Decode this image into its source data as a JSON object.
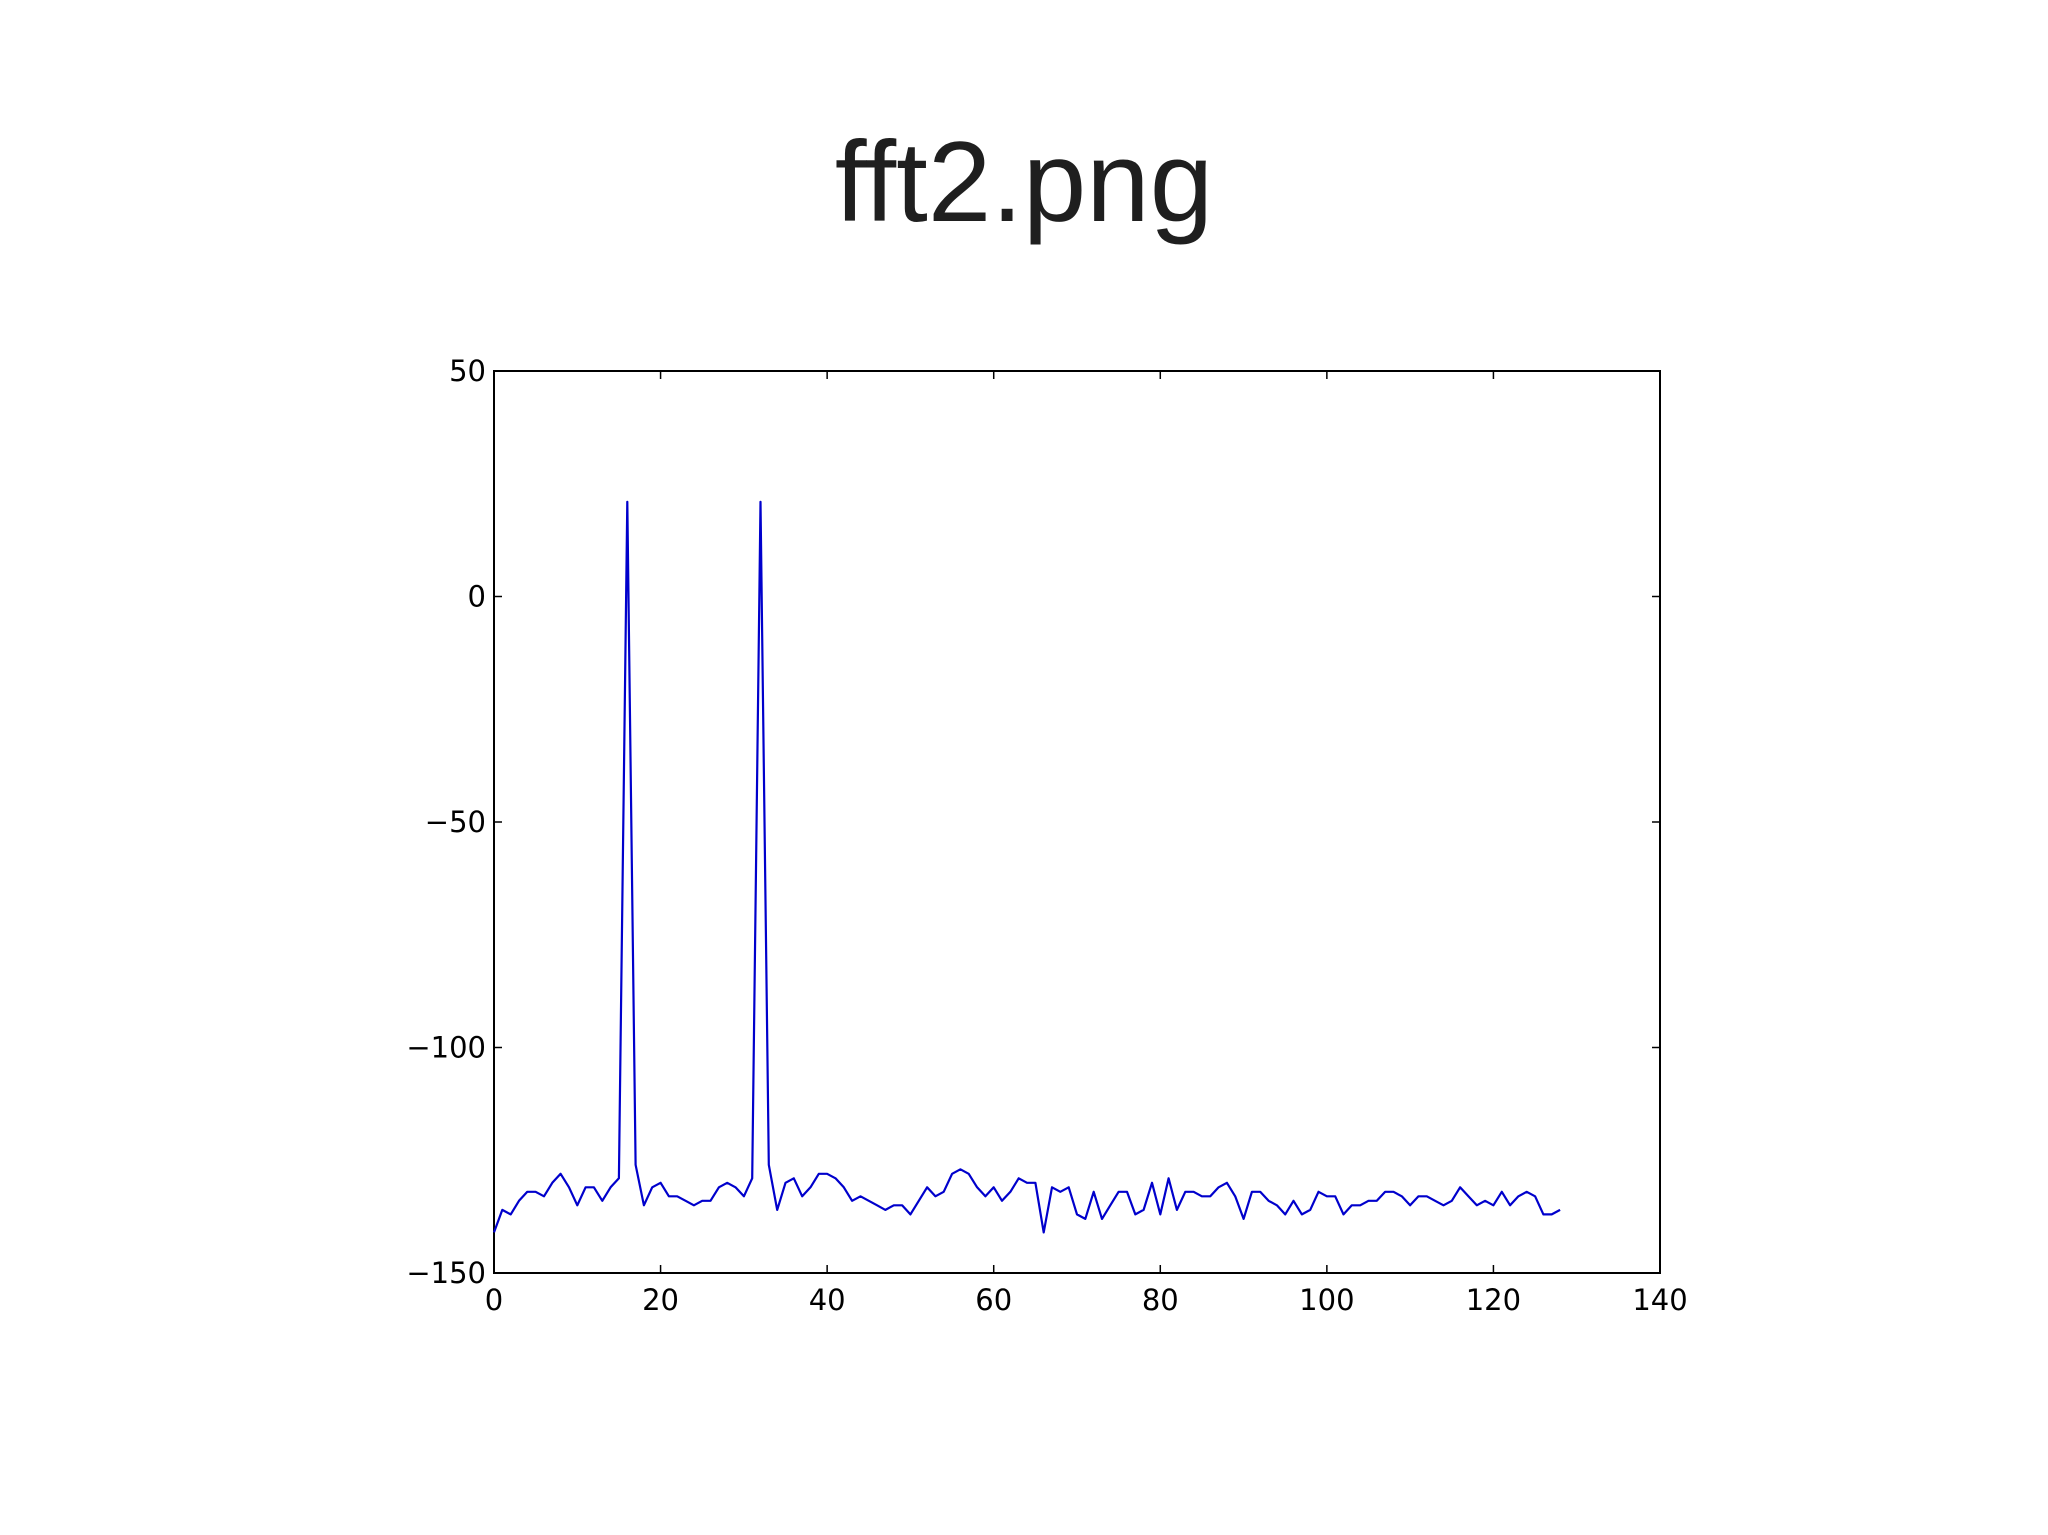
{
  "slide": {
    "title": "fft2.png"
  },
  "chart_data": {
    "type": "line",
    "title": "",
    "xlabel": "",
    "ylabel": "",
    "xlim": [
      0,
      140
    ],
    "ylim": [
      -150,
      50
    ],
    "grid": false,
    "legend": "none",
    "x_ticks": [
      0,
      20,
      40,
      60,
      80,
      100,
      120,
      140
    ],
    "y_ticks": [
      50,
      0,
      -50,
      -100,
      -150
    ],
    "x_tick_labels": [
      "0",
      "20",
      "40",
      "60",
      "80",
      "100",
      "120",
      "140"
    ],
    "y_tick_labels": [
      "50",
      "0",
      "−50",
      "−100",
      "−150"
    ],
    "line_color": "#0000cc",
    "series": [
      {
        "x": [
          0,
          1,
          2,
          3,
          4,
          5,
          6,
          7,
          8,
          9,
          10,
          11,
          12,
          13,
          14,
          15,
          16,
          17,
          18,
          19,
          20,
          21,
          22,
          23,
          24,
          25,
          26,
          27,
          28,
          29,
          30,
          31,
          32,
          33,
          34,
          35,
          36,
          37,
          38,
          39,
          40,
          41,
          42,
          43,
          44,
          45,
          46,
          47,
          48,
          49,
          50,
          51,
          52,
          53,
          54,
          55,
          56,
          57,
          58,
          59,
          60,
          61,
          62,
          63,
          64,
          65,
          66,
          67,
          68,
          69,
          70,
          71,
          72,
          73,
          74,
          75,
          76,
          77,
          78,
          79,
          80,
          81,
          82,
          83,
          84,
          85,
          86,
          87,
          88,
          89,
          90,
          91,
          92,
          93,
          94,
          95,
          96,
          97,
          98,
          99,
          100,
          101,
          102,
          103,
          104,
          105,
          106,
          107,
          108,
          109,
          110,
          111,
          112,
          113,
          114,
          115,
          116,
          117,
          118,
          119,
          120,
          121,
          122,
          123,
          124,
          125,
          126,
          127,
          128
        ],
        "y": [
          -141,
          -136,
          -137,
          -134,
          -132,
          -132,
          -133,
          -130,
          -128,
          -131,
          -135,
          -131,
          -131,
          -134,
          -131,
          -129,
          21,
          -126,
          -135,
          -131,
          -130,
          -133,
          -133,
          -134,
          -135,
          -134,
          -134,
          -131,
          -130,
          -131,
          -133,
          -129,
          21,
          -126,
          -136,
          -130,
          -129,
          -133,
          -131,
          -128,
          -128,
          -129,
          -131,
          -134,
          -133,
          -134,
          -135,
          -136,
          -135,
          -135,
          -137,
          -134,
          -131,
          -133,
          -132,
          -128,
          -127,
          -128,
          -131,
          -133,
          -131,
          -134,
          -132,
          -129,
          -130,
          -130,
          -141,
          -131,
          -132,
          -131,
          -137,
          -138,
          -132,
          -138,
          -135,
          -132,
          -132,
          -137,
          -136,
          -130,
          -137,
          -129,
          -136,
          -132,
          -132,
          -133,
          -133,
          -131,
          -130,
          -133,
          -138,
          -132,
          -132,
          -134,
          -135,
          -137,
          -134,
          -137,
          -136,
          -132,
          -133,
          -133,
          -137,
          -135,
          -135,
          -134,
          -134,
          -132,
          -132,
          -133,
          -135,
          -133,
          -133,
          -134,
          -135,
          -134,
          -131,
          -133,
          -135,
          -134,
          -135,
          -132,
          -135,
          -133,
          -132,
          -133,
          -137,
          -137,
          -136
        ]
      }
    ]
  }
}
